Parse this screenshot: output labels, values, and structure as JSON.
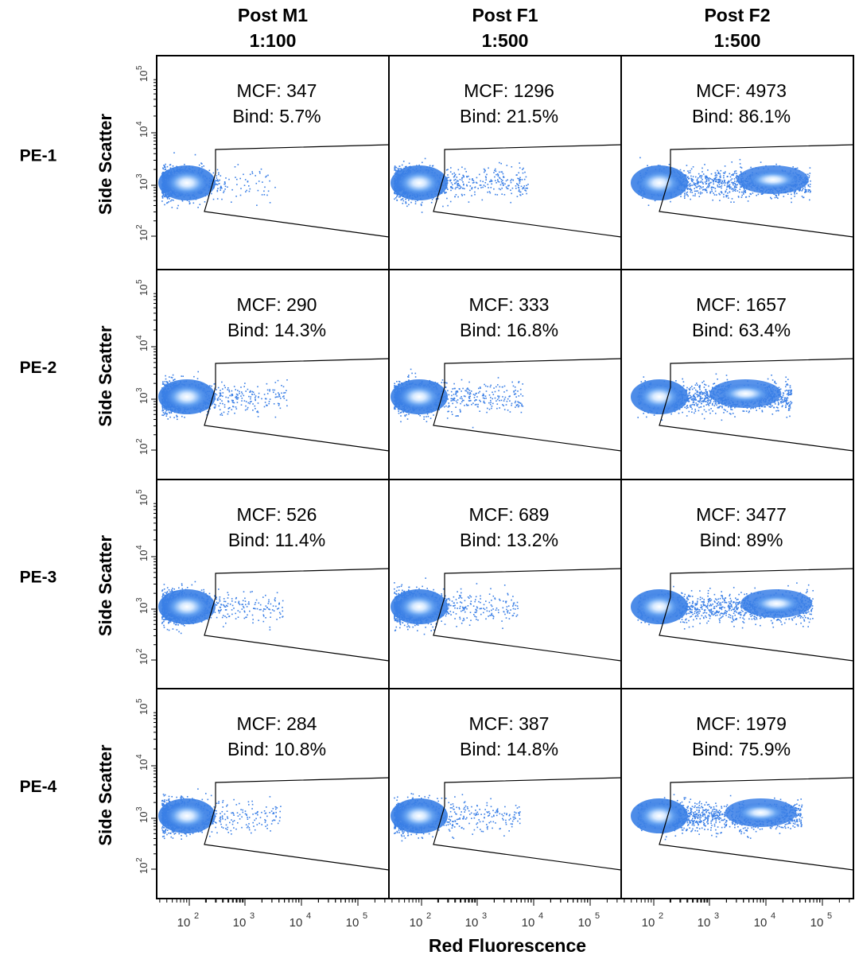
{
  "chart_data": {
    "type": "scatter",
    "xlabel": "Red Fluorescence",
    "ylabel": "Side Scatter",
    "x_scale": "log",
    "y_scale": "log",
    "columns": [
      {
        "title": "Post M1",
        "dilution": "1:100"
      },
      {
        "title": "Post F1",
        "dilution": "1:500"
      },
      {
        "title": "Post F2",
        "dilution": "1:500"
      }
    ],
    "rows": [
      "PE-1",
      "PE-2",
      "PE-3",
      "PE-4"
    ],
    "x_tick_labels": [
      "10",
      "10",
      "10",
      "10"
    ],
    "x_tick_exponents": [
      "2",
      "3",
      "4",
      "5"
    ],
    "y_tick_labels": [
      "10",
      "10",
      "10",
      "10"
    ],
    "y_tick_exponents": [
      "2",
      "3",
      "4",
      "5"
    ],
    "panels": [
      {
        "row": "PE-1",
        "col": "Post M1",
        "mcf_label": "MCF: 347",
        "bind_label": "Bind: 5.7%",
        "mcf": 347,
        "bind_pct": 5.7
      },
      {
        "row": "PE-1",
        "col": "Post F1",
        "mcf_label": "MCF: 1296",
        "bind_label": "Bind: 21.5%",
        "mcf": 1296,
        "bind_pct": 21.5
      },
      {
        "row": "PE-1",
        "col": "Post F2",
        "mcf_label": "MCF: 4973",
        "bind_label": "Bind: 86.1%",
        "mcf": 4973,
        "bind_pct": 86.1
      },
      {
        "row": "PE-2",
        "col": "Post M1",
        "mcf_label": "MCF: 290",
        "bind_label": "Bind: 14.3%",
        "mcf": 290,
        "bind_pct": 14.3
      },
      {
        "row": "PE-2",
        "col": "Post F1",
        "mcf_label": "MCF: 333",
        "bind_label": "Bind: 16.8%",
        "mcf": 333,
        "bind_pct": 16.8
      },
      {
        "row": "PE-2",
        "col": "Post F2",
        "mcf_label": "MCF: 1657",
        "bind_label": "Bind: 63.4%",
        "mcf": 1657,
        "bind_pct": 63.4
      },
      {
        "row": "PE-3",
        "col": "Post M1",
        "mcf_label": "MCF: 526",
        "bind_label": "Bind: 11.4%",
        "mcf": 526,
        "bind_pct": 11.4
      },
      {
        "row": "PE-3",
        "col": "Post F1",
        "mcf_label": "MCF: 689",
        "bind_label": "Bind: 13.2%",
        "mcf": 689,
        "bind_pct": 13.2
      },
      {
        "row": "PE-3",
        "col": "Post F2",
        "mcf_label": "MCF: 3477",
        "bind_label": "Bind: 89%",
        "mcf": 3477,
        "bind_pct": 89
      },
      {
        "row": "PE-4",
        "col": "Post M1",
        "mcf_label": "MCF: 284",
        "bind_label": "Bind: 10.8%",
        "mcf": 284,
        "bind_pct": 10.8
      },
      {
        "row": "PE-4",
        "col": "Post F1",
        "mcf_label": "MCF: 387",
        "bind_label": "Bind: 14.8%",
        "mcf": 387,
        "bind_pct": 14.8
      },
      {
        "row": "PE-4",
        "col": "Post F2",
        "mcf_label": "MCF: 1979",
        "bind_label": "Bind: 75.9%",
        "mcf": 1979,
        "bind_pct": 75.9
      }
    ]
  },
  "colors": {
    "point": "#3a7fe6",
    "core": "#e8f3ff",
    "axis": "#000000",
    "gate": "#000000"
  }
}
